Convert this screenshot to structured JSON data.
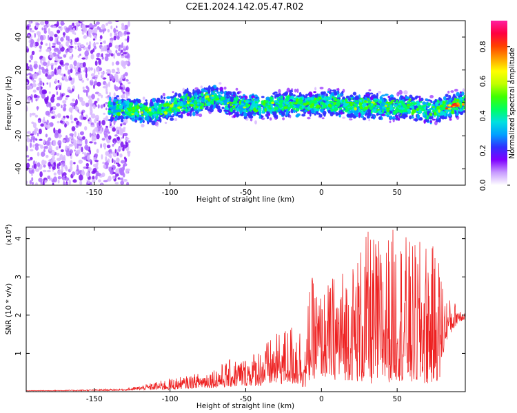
{
  "title": "C2E1.2024.142.05.47.R02",
  "chart_data": [
    {
      "type": "heatmap",
      "xlabel": "Height of straight line (km)",
      "ylabel": "Frequency (Hz)",
      "xlim": [
        -195,
        95
      ],
      "ylim": [
        -50,
        50
      ],
      "xticks": [
        -150,
        -100,
        -50,
        0,
        50
      ],
      "yticks": [
        -40,
        -20,
        0,
        20,
        40
      ],
      "colorbar": {
        "label": "Normalized spectral amplitude",
        "range": [
          0,
          0.95
        ],
        "ticks": [
          0.0,
          0.2,
          0.4,
          0.6,
          0.8
        ],
        "colormap": [
          "#ffffff",
          "#c89bff",
          "#7f00ff",
          "#3030ff",
          "#00a0ff",
          "#00e0e0",
          "#00ff60",
          "#40ff00",
          "#c0ff00",
          "#ffff00",
          "#ffa000",
          "#ff4000",
          "#ff0040",
          "#ff20a0"
        ]
      },
      "band_center": [
        [
          -140,
          -3
        ],
        [
          -125,
          -4
        ],
        [
          -115,
          -6
        ],
        [
          -100,
          -3
        ],
        [
          -90,
          0
        ],
        [
          -80,
          1
        ],
        [
          -70,
          3
        ],
        [
          -60,
          0
        ],
        [
          -50,
          -2
        ],
        [
          -40,
          -2
        ],
        [
          -30,
          -1
        ],
        [
          -20,
          0
        ],
        [
          -10,
          -1
        ],
        [
          0,
          0
        ],
        [
          10,
          0
        ],
        [
          20,
          -2
        ],
        [
          30,
          -2
        ],
        [
          40,
          -2
        ],
        [
          50,
          -3
        ],
        [
          60,
          -2
        ],
        [
          70,
          -5
        ],
        [
          80,
          -3
        ],
        [
          90,
          -1
        ],
        [
          95,
          0
        ]
      ],
      "grid": false
    },
    {
      "type": "line",
      "xlabel": "Height of straight line (km)",
      "ylabel": "SNR (10 * v/v)",
      "y_multiplier": "(x10",
      "y_multiplier_exp": "4",
      "y_multiplier_close": ")",
      "xlim": [
        -195,
        95
      ],
      "ylim": [
        0,
        4.3
      ],
      "xticks": [
        -150,
        -100,
        -50,
        0,
        50
      ],
      "yticks": [
        1,
        2,
        3,
        4
      ],
      "series": [
        {
          "color": "#ee2222",
          "envelope": [
            [
              -195,
              0.02,
              0.03
            ],
            [
              -160,
              0.02,
              0.05
            ],
            [
              -130,
              0.03,
              0.08
            ],
            [
              -120,
              0.05,
              0.15
            ],
            [
              -110,
              0.05,
              0.25
            ],
            [
              -100,
              0.05,
              0.35
            ],
            [
              -90,
              0.08,
              0.4
            ],
            [
              -80,
              0.1,
              0.5
            ],
            [
              -70,
              0.1,
              0.65
            ],
            [
              -60,
              0.12,
              0.85
            ],
            [
              -50,
              0.15,
              0.9
            ],
            [
              -40,
              0.15,
              1.2
            ],
            [
              -30,
              0.2,
              1.5
            ],
            [
              -20,
              0.2,
              1.8
            ],
            [
              -15,
              0.15,
              1.9
            ],
            [
              -10,
              0.1,
              1.2
            ],
            [
              -8,
              0.3,
              3.1
            ],
            [
              0,
              0.4,
              2.6
            ],
            [
              10,
              0.3,
              3.2
            ],
            [
              20,
              0.3,
              3.4
            ],
            [
              30,
              0.2,
              4.2
            ],
            [
              40,
              0.2,
              4.0
            ],
            [
              50,
              0.3,
              4.4
            ],
            [
              60,
              0.2,
              3.9
            ],
            [
              70,
              0.2,
              4.0
            ],
            [
              78,
              0.3,
              3.6
            ],
            [
              82,
              1.3,
              2.5
            ],
            [
              90,
              1.8,
              2.3
            ],
            [
              95,
              1.9,
              2.1
            ]
          ]
        }
      ],
      "grid": false
    }
  ]
}
